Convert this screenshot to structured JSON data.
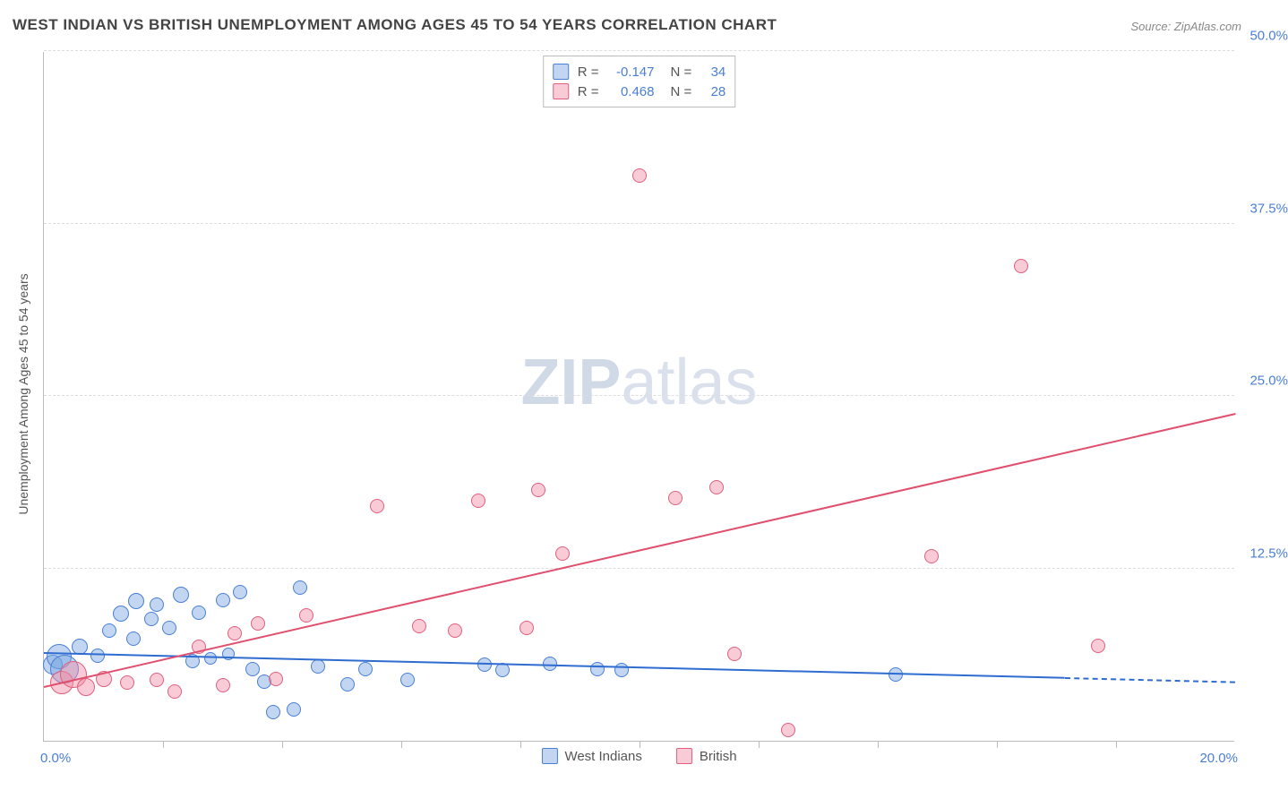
{
  "title": "WEST INDIAN VS BRITISH UNEMPLOYMENT AMONG AGES 45 TO 54 YEARS CORRELATION CHART",
  "source_label": "Source: ZipAtlas.com",
  "watermark_a": "ZIP",
  "watermark_b": "atlas",
  "chart": {
    "type": "scatter",
    "y_axis_label": "Unemployment Among Ages 45 to 54 years",
    "xlim": [
      0,
      20
    ],
    "ylim": [
      0,
      50
    ],
    "x_first_label": "0.0%",
    "x_last_label": "20.0%",
    "y_ticks": [
      12.5,
      25.0,
      37.5,
      50.0
    ],
    "y_tick_labels": [
      "12.5%",
      "25.0%",
      "37.5%",
      "50.0%"
    ],
    "x_tick_positions": [
      2,
      4,
      6,
      8,
      10,
      12,
      14,
      16,
      18
    ],
    "grid_color": "#dddddd",
    "axis_color": "#bbbbbb",
    "background_color": "#ffffff",
    "tick_label_color": "#4a7fd6",
    "axis_label_color": "#555555",
    "title_color": "#444444",
    "series": [
      {
        "name": "West Indians",
        "fill": "rgba(120,165,225,0.45)",
        "stroke": "#4a7fd6",
        "trend_color": "#2f6cd0",
        "trend_width": 2,
        "trend_y_at_x0": 6.3,
        "trend_y_at_xmax": 4.2,
        "trend_solid_until_y": 4.5,
        "R": "-0.147",
        "N": "34",
        "points": [
          {
            "x": 0.15,
            "y": 5.5,
            "r": 11
          },
          {
            "x": 0.25,
            "y": 6.1,
            "r": 14
          },
          {
            "x": 0.35,
            "y": 5.2,
            "r": 16
          },
          {
            "x": 0.6,
            "y": 6.8,
            "r": 9
          },
          {
            "x": 0.9,
            "y": 6.2,
            "r": 8
          },
          {
            "x": 1.1,
            "y": 8.0,
            "r": 8
          },
          {
            "x": 1.3,
            "y": 9.2,
            "r": 9
          },
          {
            "x": 1.5,
            "y": 7.4,
            "r": 8
          },
          {
            "x": 1.55,
            "y": 10.1,
            "r": 9
          },
          {
            "x": 1.8,
            "y": 8.8,
            "r": 8
          },
          {
            "x": 1.9,
            "y": 9.9,
            "r": 8
          },
          {
            "x": 2.1,
            "y": 8.2,
            "r": 8
          },
          {
            "x": 2.3,
            "y": 10.6,
            "r": 9
          },
          {
            "x": 2.5,
            "y": 5.8,
            "r": 8
          },
          {
            "x": 2.6,
            "y": 9.3,
            "r": 8
          },
          {
            "x": 2.8,
            "y": 6.0,
            "r": 7
          },
          {
            "x": 3.0,
            "y": 10.2,
            "r": 8
          },
          {
            "x": 3.1,
            "y": 6.3,
            "r": 7
          },
          {
            "x": 3.3,
            "y": 10.8,
            "r": 8
          },
          {
            "x": 3.5,
            "y": 5.2,
            "r": 8
          },
          {
            "x": 3.7,
            "y": 4.3,
            "r": 8
          },
          {
            "x": 3.85,
            "y": 2.1,
            "r": 8
          },
          {
            "x": 4.2,
            "y": 2.3,
            "r": 8
          },
          {
            "x": 4.3,
            "y": 11.1,
            "r": 8
          },
          {
            "x": 4.6,
            "y": 5.4,
            "r": 8
          },
          {
            "x": 5.1,
            "y": 4.1,
            "r": 8
          },
          {
            "x": 5.4,
            "y": 5.2,
            "r": 8
          },
          {
            "x": 6.1,
            "y": 4.4,
            "r": 8
          },
          {
            "x": 7.4,
            "y": 5.5,
            "r": 8
          },
          {
            "x": 7.7,
            "y": 5.1,
            "r": 8
          },
          {
            "x": 8.5,
            "y": 5.6,
            "r": 8
          },
          {
            "x": 9.3,
            "y": 5.2,
            "r": 8
          },
          {
            "x": 9.7,
            "y": 5.1,
            "r": 8
          },
          {
            "x": 14.3,
            "y": 4.8,
            "r": 8
          }
        ]
      },
      {
        "name": "British",
        "fill": "rgba(240,140,165,0.45)",
        "stroke": "#e0607d",
        "trend_color": "#e0506e",
        "trend_width": 2,
        "trend_y_at_x0": 3.8,
        "trend_y_at_xmax": 23.6,
        "trend_solid_until_y": null,
        "R": "0.468",
        "N": "28",
        "points": [
          {
            "x": 0.3,
            "y": 4.2,
            "r": 13
          },
          {
            "x": 0.5,
            "y": 4.8,
            "r": 15
          },
          {
            "x": 0.7,
            "y": 3.9,
            "r": 10
          },
          {
            "x": 1.0,
            "y": 4.5,
            "r": 9
          },
          {
            "x": 1.4,
            "y": 4.2,
            "r": 8
          },
          {
            "x": 1.9,
            "y": 4.4,
            "r": 8
          },
          {
            "x": 2.2,
            "y": 3.6,
            "r": 8
          },
          {
            "x": 2.6,
            "y": 6.8,
            "r": 8
          },
          {
            "x": 3.0,
            "y": 4.0,
            "r": 8
          },
          {
            "x": 3.2,
            "y": 7.8,
            "r": 8
          },
          {
            "x": 3.6,
            "y": 8.5,
            "r": 8
          },
          {
            "x": 3.9,
            "y": 4.5,
            "r": 8
          },
          {
            "x": 4.4,
            "y": 9.1,
            "r": 8
          },
          {
            "x": 5.6,
            "y": 17.0,
            "r": 8
          },
          {
            "x": 6.3,
            "y": 8.3,
            "r": 8
          },
          {
            "x": 6.9,
            "y": 8.0,
            "r": 8
          },
          {
            "x": 7.3,
            "y": 17.4,
            "r": 8
          },
          {
            "x": 8.1,
            "y": 8.2,
            "r": 8
          },
          {
            "x": 8.3,
            "y": 18.2,
            "r": 8
          },
          {
            "x": 8.7,
            "y": 13.6,
            "r": 8
          },
          {
            "x": 10.0,
            "y": 41.0,
            "r": 8
          },
          {
            "x": 10.6,
            "y": 17.6,
            "r": 8
          },
          {
            "x": 11.3,
            "y": 18.4,
            "r": 8
          },
          {
            "x": 11.6,
            "y": 6.3,
            "r": 8
          },
          {
            "x": 12.5,
            "y": 0.8,
            "r": 8
          },
          {
            "x": 14.9,
            "y": 13.4,
            "r": 8
          },
          {
            "x": 16.4,
            "y": 34.4,
            "r": 8
          },
          {
            "x": 17.7,
            "y": 6.9,
            "r": 8
          }
        ]
      }
    ],
    "legend_bottom": [
      {
        "label": "West Indians",
        "fill": "rgba(120,165,225,0.45)",
        "stroke": "#4a7fd6"
      },
      {
        "label": "British",
        "fill": "rgba(240,140,165,0.45)",
        "stroke": "#e0607d"
      }
    ]
  }
}
